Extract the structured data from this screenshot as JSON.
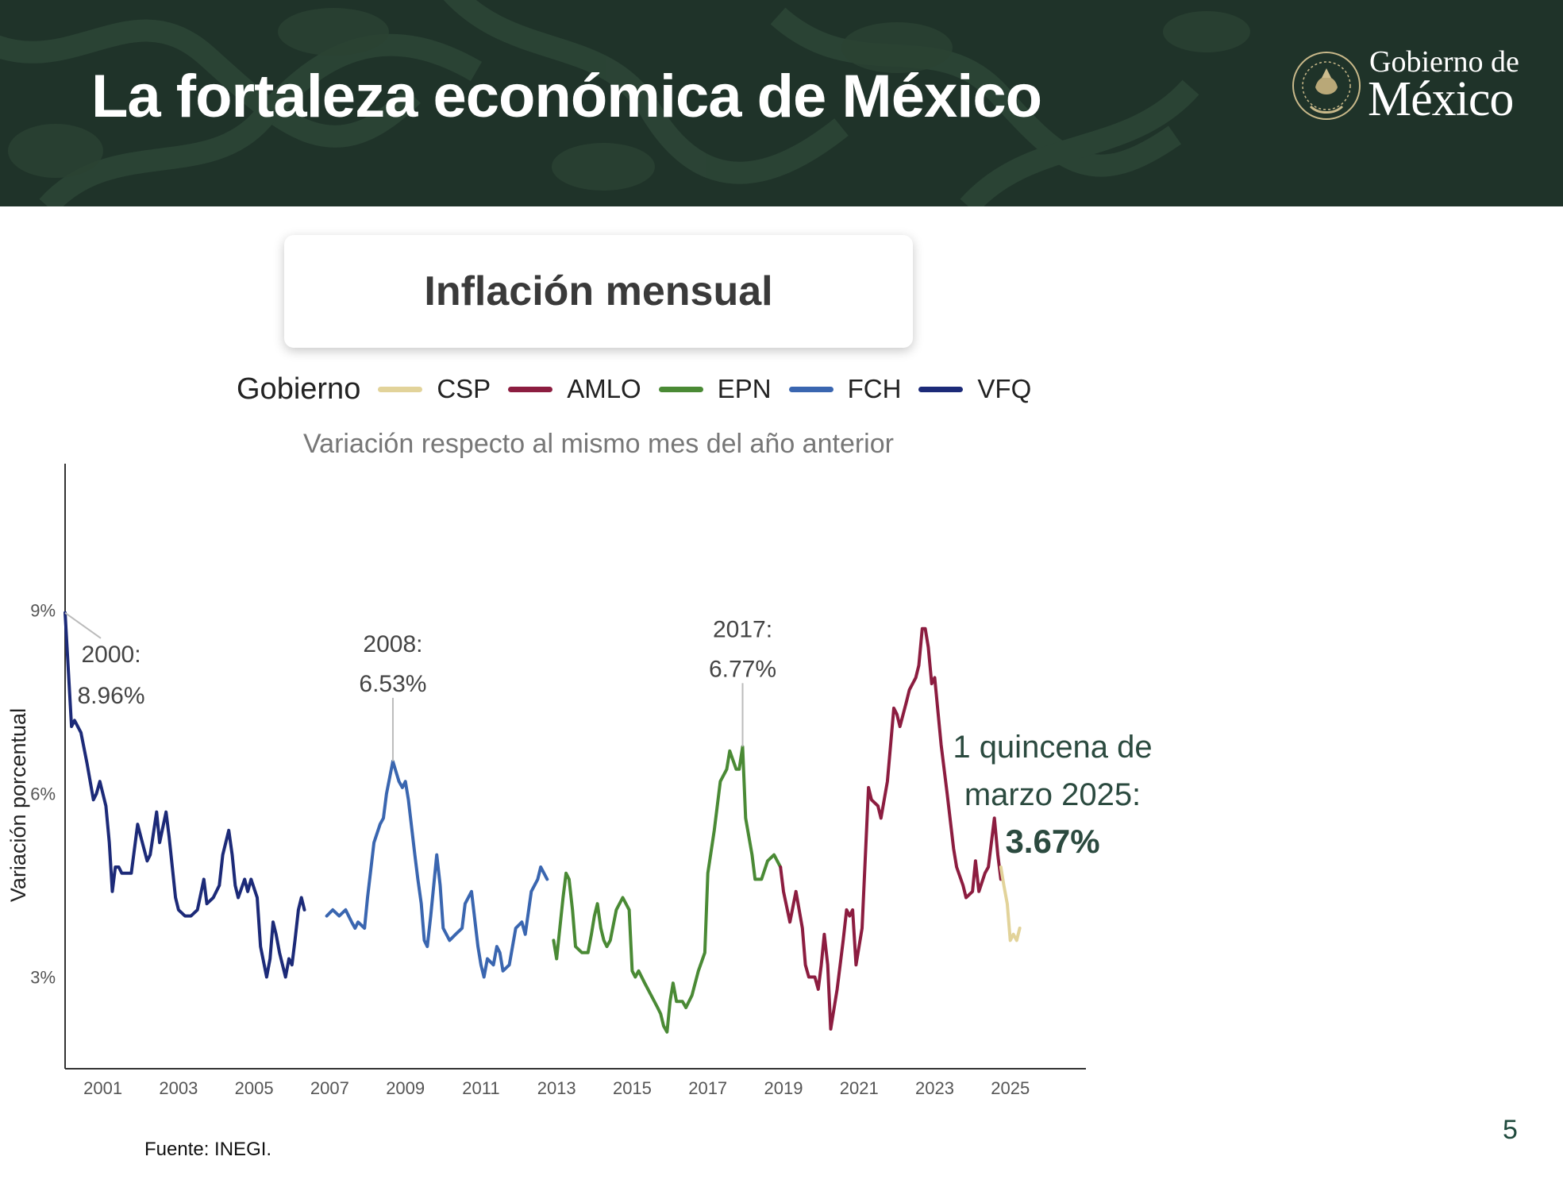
{
  "header": {
    "title": "La fortaleza económica de México",
    "logo_line1": "Gobierno de",
    "logo_line2": "México",
    "logo_seal_text": "ESTADOS UNIDOS MEXICANOS"
  },
  "colors": {
    "header_bg": "#1f3329",
    "CSP": "#e2d39a",
    "AMLO": "#8c1d40",
    "EPN": "#4a8a35",
    "FCH": "#3a66b0",
    "VFQ": "#1c2a78"
  },
  "footnote": "Fuente: INEGI.",
  "page_number": "5",
  "chart_data": {
    "type": "line",
    "title": "Inflación mensual",
    "subtitle": "Variación respecto al mismo mes del año anterior",
    "ylabel": "Variación porcentual",
    "xlabel": "",
    "legend_title": "Gobierno",
    "legend_position": "top",
    "grid": false,
    "ylim": [
      1.5,
      11.4
    ],
    "xlim": [
      2000.0,
      2027.0
    ],
    "x_ticks": [
      "2001",
      "2003",
      "2005",
      "2007",
      "2009",
      "2011",
      "2013",
      "2015",
      "2017",
      "2019",
      "2021",
      "2023",
      "2025"
    ],
    "y_ticks": [
      "3%",
      "6%",
      "9%"
    ],
    "series": [
      {
        "name": "VFQ",
        "color_key": "VFQ",
        "points": [
          [
            2000.0,
            8.96
          ],
          [
            2000.17,
            7.1
          ],
          [
            2000.25,
            7.2
          ],
          [
            2000.42,
            7.0
          ],
          [
            2000.58,
            6.5
          ],
          [
            2000.75,
            5.9
          ],
          [
            2000.83,
            6.0
          ],
          [
            2000.92,
            6.2
          ],
          [
            2001.08,
            5.8
          ],
          [
            2001.17,
            5.2
          ],
          [
            2001.25,
            4.4
          ],
          [
            2001.33,
            4.8
          ],
          [
            2001.42,
            4.8
          ],
          [
            2001.5,
            4.7
          ],
          [
            2001.58,
            4.7
          ],
          [
            2001.75,
            4.7
          ],
          [
            2001.92,
            5.5
          ],
          [
            2002.0,
            5.3
          ],
          [
            2002.17,
            4.9
          ],
          [
            2002.25,
            5.0
          ],
          [
            2002.42,
            5.7
          ],
          [
            2002.5,
            5.2
          ],
          [
            2002.67,
            5.7
          ],
          [
            2002.75,
            5.3
          ],
          [
            2002.92,
            4.3
          ],
          [
            2003.0,
            4.1
          ],
          [
            2003.17,
            4.0
          ],
          [
            2003.33,
            4.0
          ],
          [
            2003.5,
            4.1
          ],
          [
            2003.67,
            4.6
          ],
          [
            2003.75,
            4.2
          ],
          [
            2003.92,
            4.3
          ],
          [
            2004.08,
            4.5
          ],
          [
            2004.17,
            5.0
          ],
          [
            2004.33,
            5.4
          ],
          [
            2004.42,
            5.0
          ],
          [
            2004.5,
            4.5
          ],
          [
            2004.58,
            4.3
          ],
          [
            2004.75,
            4.6
          ],
          [
            2004.83,
            4.4
          ],
          [
            2004.92,
            4.6
          ],
          [
            2005.08,
            4.3
          ],
          [
            2005.17,
            3.5
          ],
          [
            2005.33,
            3.0
          ],
          [
            2005.42,
            3.3
          ],
          [
            2005.5,
            3.9
          ],
          [
            2005.58,
            3.7
          ],
          [
            2005.67,
            3.4
          ],
          [
            2005.83,
            3.0
          ],
          [
            2005.92,
            3.3
          ],
          [
            2006.0,
            3.2
          ],
          [
            2006.08,
            3.6
          ],
          [
            2006.17,
            4.1
          ],
          [
            2006.25,
            4.3
          ],
          [
            2006.33,
            4.1
          ]
        ]
      },
      {
        "name": "FCH",
        "color_key": "FCH",
        "points": [
          [
            2006.92,
            4.0
          ],
          [
            2007.08,
            4.1
          ],
          [
            2007.25,
            4.0
          ],
          [
            2007.42,
            4.1
          ],
          [
            2007.58,
            3.9
          ],
          [
            2007.67,
            3.8
          ],
          [
            2007.75,
            3.9
          ],
          [
            2007.92,
            3.8
          ],
          [
            2008.0,
            4.3
          ],
          [
            2008.17,
            5.2
          ],
          [
            2008.33,
            5.5
          ],
          [
            2008.42,
            5.6
          ],
          [
            2008.5,
            6.0
          ],
          [
            2008.67,
            6.53
          ],
          [
            2008.83,
            6.2
          ],
          [
            2008.92,
            6.1
          ],
          [
            2009.0,
            6.2
          ],
          [
            2009.08,
            5.9
          ],
          [
            2009.25,
            5.0
          ],
          [
            2009.33,
            4.6
          ],
          [
            2009.42,
            4.2
          ],
          [
            2009.5,
            3.6
          ],
          [
            2009.58,
            3.5
          ],
          [
            2009.67,
            4.0
          ],
          [
            2009.83,
            5.0
          ],
          [
            2009.92,
            4.5
          ],
          [
            2010.0,
            3.8
          ],
          [
            2010.17,
            3.6
          ],
          [
            2010.33,
            3.7
          ],
          [
            2010.5,
            3.8
          ],
          [
            2010.58,
            4.2
          ],
          [
            2010.75,
            4.4
          ],
          [
            2010.92,
            3.5
          ],
          [
            2011.0,
            3.2
          ],
          [
            2011.08,
            3.0
          ],
          [
            2011.17,
            3.3
          ],
          [
            2011.33,
            3.2
          ],
          [
            2011.42,
            3.5
          ],
          [
            2011.5,
            3.4
          ],
          [
            2011.58,
            3.1
          ],
          [
            2011.75,
            3.2
          ],
          [
            2011.92,
            3.8
          ],
          [
            2012.08,
            3.9
          ],
          [
            2012.17,
            3.7
          ],
          [
            2012.33,
            4.4
          ],
          [
            2012.5,
            4.6
          ],
          [
            2012.58,
            4.8
          ],
          [
            2012.75,
            4.6
          ]
        ]
      },
      {
        "name": "EPN",
        "color_key": "EPN",
        "points": [
          [
            2012.92,
            3.6
          ],
          [
            2013.0,
            3.3
          ],
          [
            2013.17,
            4.3
          ],
          [
            2013.25,
            4.7
          ],
          [
            2013.33,
            4.6
          ],
          [
            2013.42,
            4.1
          ],
          [
            2013.5,
            3.5
          ],
          [
            2013.67,
            3.4
          ],
          [
            2013.83,
            3.4
          ],
          [
            2013.92,
            3.7
          ],
          [
            2014.0,
            4.0
          ],
          [
            2014.08,
            4.2
          ],
          [
            2014.17,
            3.8
          ],
          [
            2014.25,
            3.6
          ],
          [
            2014.33,
            3.5
          ],
          [
            2014.42,
            3.6
          ],
          [
            2014.58,
            4.1
          ],
          [
            2014.75,
            4.3
          ],
          [
            2014.92,
            4.1
          ],
          [
            2015.0,
            3.1
          ],
          [
            2015.08,
            3.0
          ],
          [
            2015.17,
            3.1
          ],
          [
            2015.33,
            2.9
          ],
          [
            2015.5,
            2.7
          ],
          [
            2015.67,
            2.5
          ],
          [
            2015.75,
            2.4
          ],
          [
            2015.83,
            2.2
          ],
          [
            2015.92,
            2.1
          ],
          [
            2016.0,
            2.6
          ],
          [
            2016.08,
            2.9
          ],
          [
            2016.17,
            2.6
          ],
          [
            2016.33,
            2.6
          ],
          [
            2016.42,
            2.5
          ],
          [
            2016.58,
            2.7
          ],
          [
            2016.75,
            3.1
          ],
          [
            2016.92,
            3.4
          ],
          [
            2017.0,
            4.7
          ],
          [
            2017.17,
            5.4
          ],
          [
            2017.33,
            6.2
          ],
          [
            2017.5,
            6.4
          ],
          [
            2017.58,
            6.7
          ],
          [
            2017.75,
            6.4
          ],
          [
            2017.83,
            6.4
          ],
          [
            2017.92,
            6.77
          ],
          [
            2018.0,
            5.6
          ],
          [
            2018.17,
            5.0
          ],
          [
            2018.25,
            4.6
          ],
          [
            2018.42,
            4.6
          ],
          [
            2018.58,
            4.9
          ],
          [
            2018.75,
            5.0
          ],
          [
            2018.92,
            4.8
          ]
        ]
      },
      {
        "name": "AMLO",
        "color_key": "AMLO",
        "points": [
          [
            2018.92,
            4.8
          ],
          [
            2019.0,
            4.4
          ],
          [
            2019.17,
            3.9
          ],
          [
            2019.33,
            4.4
          ],
          [
            2019.5,
            3.8
          ],
          [
            2019.58,
            3.2
          ],
          [
            2019.67,
            3.0
          ],
          [
            2019.83,
            3.0
          ],
          [
            2019.92,
            2.8
          ],
          [
            2020.0,
            3.2
          ],
          [
            2020.08,
            3.7
          ],
          [
            2020.17,
            3.2
          ],
          [
            2020.25,
            2.15
          ],
          [
            2020.42,
            2.8
          ],
          [
            2020.58,
            3.6
          ],
          [
            2020.67,
            4.1
          ],
          [
            2020.75,
            4.0
          ],
          [
            2020.83,
            4.1
          ],
          [
            2020.92,
            3.2
          ],
          [
            2021.0,
            3.5
          ],
          [
            2021.08,
            3.8
          ],
          [
            2021.25,
            6.1
          ],
          [
            2021.33,
            5.9
          ],
          [
            2021.5,
            5.8
          ],
          [
            2021.58,
            5.6
          ],
          [
            2021.75,
            6.2
          ],
          [
            2021.92,
            7.4
          ],
          [
            2022.0,
            7.3
          ],
          [
            2022.08,
            7.1
          ],
          [
            2022.25,
            7.5
          ],
          [
            2022.33,
            7.7
          ],
          [
            2022.5,
            7.9
          ],
          [
            2022.58,
            8.1
          ],
          [
            2022.67,
            8.7
          ],
          [
            2022.75,
            8.7
          ],
          [
            2022.83,
            8.4
          ],
          [
            2022.92,
            7.8
          ],
          [
            2023.0,
            7.9
          ],
          [
            2023.17,
            6.8
          ],
          [
            2023.33,
            6.0
          ],
          [
            2023.5,
            5.1
          ],
          [
            2023.58,
            4.8
          ],
          [
            2023.75,
            4.5
          ],
          [
            2023.83,
            4.3
          ],
          [
            2024.0,
            4.4
          ],
          [
            2024.08,
            4.9
          ],
          [
            2024.17,
            4.4
          ],
          [
            2024.33,
            4.7
          ],
          [
            2024.42,
            4.8
          ],
          [
            2024.58,
            5.6
          ],
          [
            2024.67,
            5.0
          ],
          [
            2024.75,
            4.6
          ]
        ]
      },
      {
        "name": "CSP",
        "color_key": "CSP",
        "points": [
          [
            2024.75,
            4.8
          ],
          [
            2024.83,
            4.5
          ],
          [
            2024.92,
            4.2
          ],
          [
            2025.0,
            3.6
          ],
          [
            2025.08,
            3.7
          ],
          [
            2025.17,
            3.6
          ],
          [
            2025.25,
            3.8
          ]
        ]
      }
    ],
    "annotations": [
      {
        "line1": "2000:",
        "line2": "8.96%",
        "x": 2000.0,
        "y": 8.96
      },
      {
        "line1": "2008:",
        "line2": "6.53%",
        "x": 2008.67,
        "y": 6.53
      },
      {
        "line1": "2017:",
        "line2": "6.77%",
        "x": 2017.92,
        "y": 6.77
      }
    ],
    "callout": {
      "line1": "1 quincena de",
      "line2": "marzo 2025:",
      "value": "3.67%"
    }
  }
}
